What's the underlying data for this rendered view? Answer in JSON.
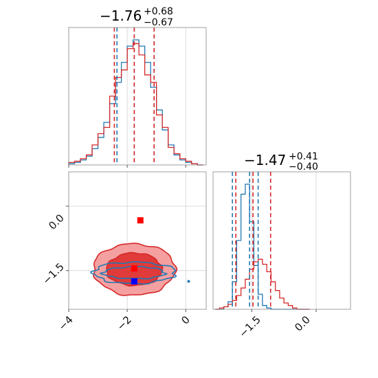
{
  "colors": {
    "blue": "#1f77b4",
    "red": "#d62728",
    "red_light": "#f08080",
    "blue_marker": "#0000ff",
    "red_marker": "#ff0000"
  },
  "chart_data": {
    "type": "corner",
    "grid": true,
    "parameters": [
      {
        "name": "",
        "range": [
          -4,
          0.7
        ],
        "ticks": [
          -4,
          -2,
          0
        ],
        "tick_labels": [
          "−4",
          "−2",
          "0"
        ],
        "title": {
          "median": "−1.76",
          "plus": "+0.68",
          "minus": "−0.67"
        },
        "quantiles": {
          "blue": [
            -2.35,
            -1.76,
            -1.08
          ],
          "red": [
            -2.44,
            -1.76,
            -1.08
          ]
        }
      },
      {
        "name": "",
        "range": [
          -2.4,
          0.8
        ],
        "ticks": [
          -1.5,
          0.0
        ],
        "tick_labels": [
          "−1.5",
          "0.0"
        ],
        "title": {
          "median": "−1.47",
          "plus": "+0.41",
          "minus": "−0.40"
        },
        "quantiles": {
          "blue": [
            -1.95,
            -1.55,
            -1.35
          ],
          "red": [
            -1.87,
            -1.47,
            -1.06
          ]
        }
      }
    ],
    "marginal_1": {
      "x": [
        -3.9,
        -3.7,
        -3.5,
        -3.3,
        -3.1,
        -2.9,
        -2.7,
        -2.5,
        -2.3,
        -2.1,
        -1.9,
        -1.7,
        -1.5,
        -1.3,
        -1.1,
        -0.9,
        -0.7,
        -0.5,
        -0.3,
        -0.1,
        0.1,
        0.3,
        0.5
      ],
      "series": [
        {
          "color": "blue",
          "values": [
            0.01,
            0.02,
            0.04,
            0.07,
            0.13,
            0.22,
            0.34,
            0.49,
            0.66,
            0.82,
            0.95,
            1.0,
            0.95,
            0.82,
            0.62,
            0.44,
            0.28,
            0.16,
            0.08,
            0.04,
            0.02,
            0.01,
            0.0
          ]
        },
        {
          "color": "red",
          "values": [
            0.02,
            0.03,
            0.05,
            0.08,
            0.16,
            0.25,
            0.3,
            0.55,
            0.7,
            0.76,
            0.93,
            0.97,
            0.88,
            0.72,
            0.66,
            0.4,
            0.3,
            0.14,
            0.09,
            0.05,
            0.03,
            0.01,
            0.0
          ]
        }
      ]
    },
    "marginal_2": {
      "x": [
        -2.3,
        -2.2,
        -2.1,
        -2.0,
        -1.9,
        -1.8,
        -1.7,
        -1.6,
        -1.5,
        -1.4,
        -1.3,
        -1.2,
        -1.1,
        -1.0,
        -0.9,
        -0.8,
        -0.7,
        -0.6,
        -0.5,
        -0.4,
        -0.3,
        -0.2
      ],
      "series": [
        {
          "color": "blue",
          "values": [
            0.0,
            0.0,
            0.02,
            0.06,
            0.22,
            0.55,
            0.92,
            1.0,
            0.7,
            0.35,
            0.12,
            0.03,
            0.01,
            0.0,
            0.0,
            0.0,
            0.0,
            0.0,
            0.0,
            0.0,
            0.0,
            0.0
          ]
        },
        {
          "color": "red",
          "values": [
            0.0,
            0.01,
            0.02,
            0.04,
            0.07,
            0.11,
            0.17,
            0.24,
            0.32,
            0.38,
            0.4,
            0.36,
            0.3,
            0.22,
            0.15,
            0.09,
            0.05,
            0.03,
            0.01,
            0.0,
            0.0,
            0.0
          ]
        }
      ]
    },
    "joint": {
      "red_fill": {
        "center": [
          -1.76,
          -1.47
        ],
        "levels": [
          [
            1.4,
            0.6
          ],
          [
            0.95,
            0.38
          ]
        ]
      },
      "blue_contours": {
        "center": [
          -1.76,
          -1.55
        ],
        "levels": [
          [
            1.4,
            0.25
          ],
          [
            1.05,
            0.14
          ]
        ]
      },
      "markers": [
        {
          "color": "red_marker",
          "x": -1.55,
          "y": -0.33
        },
        {
          "color": "red_marker",
          "x": -1.76,
          "y": -1.45
        },
        {
          "color": "blue_marker",
          "x": -1.76,
          "y": -1.75
        }
      ],
      "outlier": {
        "color": "blue",
        "x": 0.1,
        "y": -1.75
      }
    }
  }
}
